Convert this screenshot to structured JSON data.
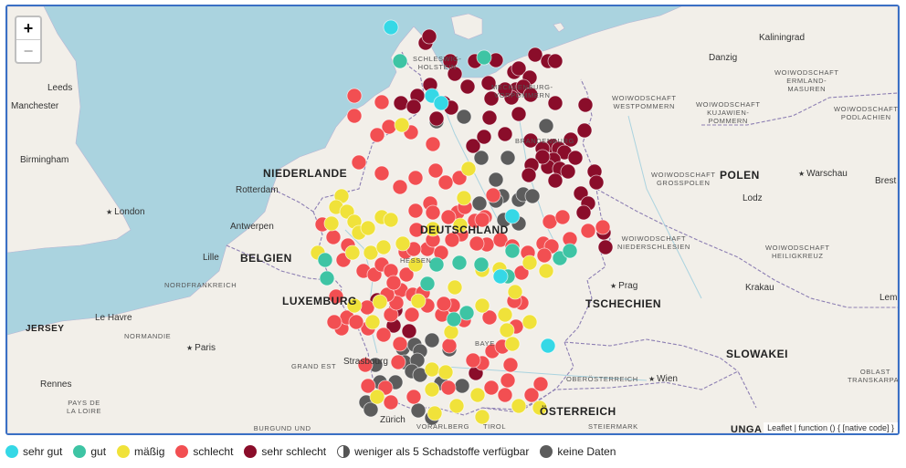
{
  "colors": {
    "sehr_gut": "#35d8e6",
    "gut": "#3ec4a4",
    "maessig": "#f0e23a",
    "schlecht": "#f24f52",
    "sehr_schlecht": "#8a0d2a",
    "keine_daten": "#5c5c5c",
    "sea": "#aad3df",
    "land": "#f2efe9",
    "border": "#8d7fb3"
  },
  "zoom": {
    "in_label": "+",
    "out_label": "−"
  },
  "attribution": "Leaflet | function () { [native code] }",
  "labels": {
    "countries": {
      "niederlande": "NIEDERLANDE",
      "belgien": "BELGIEN",
      "luxemburg": "LUXEMBURG",
      "polen": "POLEN",
      "tschechien": "TSCHECHIEN",
      "oesterreich": "ÖSTERREICH",
      "slowakei": "SLOWAKEI",
      "jersey": "JERSEY",
      "deutschland": "DEUTSCHLAND",
      "ungarn": "UNGA"
    },
    "cities": {
      "kaliningrad": "Kaliningrad",
      "danzig": "Danzig",
      "leeds": "Leeds",
      "manchester": "Manchester",
      "birmingham": "Birmingham",
      "london": "London",
      "rotterdam": "Rotterdam",
      "antwerpen": "Antwerpen",
      "lille": "Lille",
      "le_havre": "Le Havre",
      "paris": "Paris",
      "rennes": "Rennes",
      "warschau": "Warschau",
      "lodz": "Lodz",
      "krakau": "Krakau",
      "prag": "Prag",
      "wien": "Wien",
      "zuerich": "Zürich",
      "strasbourg": "Strasbourg",
      "brest": "Brest",
      "lem": "Lem"
    },
    "regions": {
      "woiw_ermland": "WOIWODSCHAFT\nERMLAND-\nMASUREN",
      "woiw_westpommern": "WOIWODSCHAFT\nWESTPOMMERN",
      "woiw_kujawien": "WOIWODSCHAFT\nKUJAWIEN-\nPOMMERN",
      "woiw_podlachien": "WOIWODSCHAFT\nPODLACHIEN",
      "woiw_grosspolen": "WOIWODSCHAFT\nGROSSPOLEN",
      "woiw_niederschlesien": "WOIWODSCHAFT\nNIEDERSCHLESIEN",
      "woiw_heiligkreuz": "WOIWODSCHAFT\nHEILIGKREUZ",
      "schleswig": "SCHLESWIG-\nHOLSTEIN",
      "mecklenburg": "MECKLENBURG-\nVORPOMMERN",
      "nordfrankreich": "NORDFRANKREICH",
      "normandie": "NORMANDIE",
      "grand_est": "GRAND EST",
      "pays_de_la_loire": "PAYS DE\nLA LOIRE",
      "burgund": "BURGUND UND\nFREIGRAFSCHAFT",
      "oberoesterreich": "OBERÖSTERREICH",
      "steiermark": "STEIERMARK",
      "vorarlberg": "VORARLBERG",
      "tirol": "TIROL",
      "oblast": "OBLAST\nTRANSKARPAT",
      "bayern": "BAYE",
      "hessen": "HESSEN",
      "brandenburg": "BRANDENBURG"
    }
  },
  "legend": [
    {
      "label": "sehr gut",
      "color": "#35d8e6"
    },
    {
      "label": "gut",
      "color": "#3ec4a4"
    },
    {
      "label": "mäßig",
      "color": "#f0e23a"
    },
    {
      "label": "schlecht",
      "color": "#f24f52"
    },
    {
      "label": "sehr schlecht",
      "color": "#8a0d2a"
    },
    {
      "label": "weniger als 5 Schadstoffe verfügbar",
      "color": "half"
    },
    {
      "label": "keine Daten",
      "color": "#5c5c5c"
    }
  ],
  "stations": {
    "sehr_gut": [
      [
        420,
        25
      ],
      [
        465,
        100
      ],
      [
        475,
        108
      ],
      [
        553,
        232
      ],
      [
        592,
        374
      ],
      [
        540,
        298
      ]
    ],
    "gut": [
      [
        430,
        62
      ],
      [
        522,
        58
      ],
      [
        348,
        280
      ],
      [
        350,
        300
      ],
      [
        460,
        306
      ],
      [
        495,
        283
      ],
      [
        605,
        278
      ],
      [
        616,
        270
      ],
      [
        548,
        298
      ],
      [
        553,
        270
      ],
      [
        519,
        285
      ],
      [
        470,
        285
      ],
      [
        503,
        338
      ],
      [
        489,
        345
      ]
    ],
    "maessig": [
      [
        432,
        132
      ],
      [
        366,
        210
      ],
      [
        360,
        222
      ],
      [
        372,
        227
      ],
      [
        380,
        238
      ],
      [
        355,
        240
      ],
      [
        385,
        250
      ],
      [
        395,
        245
      ],
      [
        410,
        233
      ],
      [
        420,
        236
      ],
      [
        398,
        272
      ],
      [
        412,
        266
      ],
      [
        340,
        272
      ],
      [
        378,
        272
      ],
      [
        433,
        262
      ],
      [
        447,
        285
      ],
      [
        490,
        310
      ],
      [
        520,
        291
      ],
      [
        539,
        290
      ],
      [
        572,
        283
      ],
      [
        590,
        292
      ],
      [
        556,
        315
      ],
      [
        545,
        340
      ],
      [
        572,
        348
      ],
      [
        380,
        330
      ],
      [
        400,
        348
      ],
      [
        408,
        326
      ],
      [
        450,
        325
      ],
      [
        520,
        330
      ],
      [
        547,
        357
      ],
      [
        486,
        359
      ],
      [
        553,
        372
      ],
      [
        465,
        400
      ],
      [
        480,
        403
      ],
      [
        405,
        430
      ],
      [
        468,
        448
      ],
      [
        492,
        440
      ],
      [
        520,
        452
      ],
      [
        515,
        428
      ],
      [
        560,
        440
      ],
      [
        583,
        442
      ],
      [
        465,
        422
      ],
      [
        500,
        212
      ],
      [
        505,
        180
      ],
      [
        496,
        242
      ],
      [
        466,
        246
      ]
    ],
    "schlecht": [
      [
        380,
        100
      ],
      [
        380,
        122
      ],
      [
        410,
        107
      ],
      [
        418,
        134
      ],
      [
        405,
        143
      ],
      [
        442,
        140
      ],
      [
        385,
        173
      ],
      [
        410,
        185
      ],
      [
        430,
        200
      ],
      [
        447,
        190
      ],
      [
        466,
        153
      ],
      [
        469,
        182
      ],
      [
        495,
        190
      ],
      [
        480,
        195
      ],
      [
        463,
        218
      ],
      [
        493,
        228
      ],
      [
        466,
        228
      ],
      [
        447,
        226
      ],
      [
        448,
        247
      ],
      [
        483,
        233
      ],
      [
        497,
        252
      ],
      [
        512,
        237
      ],
      [
        523,
        233
      ],
      [
        487,
        258
      ],
      [
        515,
        262
      ],
      [
        525,
        263
      ],
      [
        540,
        258
      ],
      [
        553,
        265
      ],
      [
        570,
        272
      ],
      [
        587,
        262
      ],
      [
        616,
        257
      ],
      [
        594,
        238
      ],
      [
        608,
        233
      ],
      [
        636,
        248
      ],
      [
        652,
        244
      ],
      [
        345,
        241
      ],
      [
        357,
        255
      ],
      [
        373,
        264
      ],
      [
        368,
        280
      ],
      [
        390,
        292
      ],
      [
        402,
        296
      ],
      [
        410,
        285
      ],
      [
        420,
        292
      ],
      [
        436,
        271
      ],
      [
        460,
        268
      ],
      [
        475,
        272
      ],
      [
        466,
        258
      ],
      [
        445,
        268
      ],
      [
        360,
        320
      ],
      [
        394,
        332
      ],
      [
        420,
        340
      ],
      [
        431,
        313
      ],
      [
        444,
        318
      ],
      [
        455,
        316
      ],
      [
        460,
        330
      ],
      [
        426,
        327
      ],
      [
        443,
        340
      ],
      [
        437,
        296
      ],
      [
        488,
        330
      ],
      [
        500,
        346
      ],
      [
        528,
        343
      ],
      [
        557,
        353
      ],
      [
        563,
        327
      ],
      [
        531,
        380
      ],
      [
        520,
        393
      ],
      [
        542,
        375
      ],
      [
        551,
        395
      ],
      [
        548,
        412
      ],
      [
        530,
        420
      ],
      [
        545,
        428
      ],
      [
        574,
        428
      ],
      [
        584,
        416
      ],
      [
        555,
        325
      ],
      [
        416,
        318
      ],
      [
        423,
        305
      ],
      [
        510,
        390
      ],
      [
        395,
        355
      ],
      [
        366,
        355
      ],
      [
        372,
        343
      ],
      [
        382,
        348
      ],
      [
        358,
        348
      ],
      [
        412,
        362
      ],
      [
        430,
        372
      ],
      [
        428,
        392
      ],
      [
        392,
        395
      ],
      [
        395,
        418
      ],
      [
        414,
        420
      ],
      [
        420,
        436
      ],
      [
        445,
        430
      ],
      [
        483,
        420
      ],
      [
        484,
        374
      ],
      [
        476,
        340
      ],
      [
        478,
        328
      ],
      [
        501,
        222
      ],
      [
        532,
        209
      ],
      [
        520,
        236
      ],
      [
        514,
        262
      ],
      [
        596,
        265
      ],
      [
        588,
        275
      ],
      [
        563,
        294
      ]
    ],
    "sehr_schlecht": [
      [
        458,
        42
      ],
      [
        462,
        35
      ],
      [
        485,
        62
      ],
      [
        490,
        76
      ],
      [
        512,
        62
      ],
      [
        535,
        61
      ],
      [
        555,
        74
      ],
      [
        560,
        70
      ],
      [
        578,
        55
      ],
      [
        592,
        62
      ],
      [
        600,
        62
      ],
      [
        572,
        80
      ],
      [
        557,
        93
      ],
      [
        565,
        90
      ],
      [
        552,
        102
      ],
      [
        573,
        99
      ],
      [
        600,
        108
      ],
      [
        633,
        110
      ],
      [
        632,
        138
      ],
      [
        617,
        148
      ],
      [
        597,
        155
      ],
      [
        586,
        158
      ],
      [
        604,
        158
      ],
      [
        610,
        162
      ],
      [
        598,
        170
      ],
      [
        592,
        178
      ],
      [
        605,
        180
      ],
      [
        614,
        183
      ],
      [
        622,
        168
      ],
      [
        586,
        167
      ],
      [
        574,
        176
      ],
      [
        571,
        187
      ],
      [
        600,
        193
      ],
      [
        643,
        183
      ],
      [
        645,
        195
      ],
      [
        628,
        207
      ],
      [
        636,
        218
      ],
      [
        631,
        228
      ],
      [
        653,
        250
      ],
      [
        655,
        266
      ],
      [
        431,
        108
      ],
      [
        449,
        100
      ],
      [
        463,
        88
      ],
      [
        478,
        108
      ],
      [
        486,
        113
      ],
      [
        504,
        90
      ],
      [
        527,
        86
      ],
      [
        530,
        103
      ],
      [
        545,
        93
      ],
      [
        560,
        120
      ],
      [
        528,
        124
      ],
      [
        510,
        155
      ],
      [
        522,
        145
      ],
      [
        545,
        142
      ],
      [
        573,
        149
      ],
      [
        470,
        125
      ],
      [
        445,
        112
      ],
      [
        405,
        324
      ],
      [
        423,
        352
      ],
      [
        425,
        335
      ],
      [
        440,
        358
      ],
      [
        513,
        404
      ]
    ],
    "keine_daten": [
      [
        500,
        123
      ],
      [
        470,
        128
      ],
      [
        519,
        168
      ],
      [
        548,
        168
      ],
      [
        535,
        192
      ],
      [
        542,
        210
      ],
      [
        517,
        218
      ],
      [
        535,
        215
      ],
      [
        560,
        214
      ],
      [
        565,
        208
      ],
      [
        575,
        210
      ],
      [
        590,
        133
      ],
      [
        544,
        236
      ],
      [
        560,
        240
      ],
      [
        433,
        377
      ],
      [
        446,
        373
      ],
      [
        452,
        380
      ],
      [
        435,
        392
      ],
      [
        449,
        390
      ],
      [
        465,
        368
      ],
      [
        484,
        378
      ],
      [
        443,
        402
      ],
      [
        452,
        406
      ],
      [
        403,
        395
      ],
      [
        408,
        414
      ],
      [
        425,
        414
      ],
      [
        475,
        415
      ],
      [
        393,
        436
      ],
      [
        398,
        444
      ],
      [
        450,
        445
      ],
      [
        465,
        453
      ],
      [
        498,
        418
      ]
    ]
  }
}
